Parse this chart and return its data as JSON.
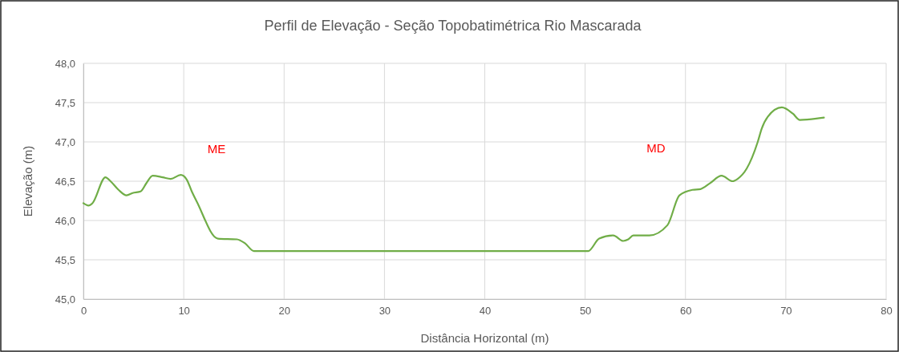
{
  "chart_data": {
    "type": "line",
    "title": "Perfil de Elevação - Seção Topobatimétrica Rio Mascarada",
    "xlabel": "Distância Horizontal (m)",
    "ylabel": "Elevação (m)",
    "xlim": [
      0,
      80
    ],
    "xticks": [
      0,
      10,
      20,
      30,
      40,
      50,
      60,
      70,
      80
    ],
    "ylim": [
      45,
      48
    ],
    "yticks": [
      {
        "value": 45,
        "label": "45,0"
      },
      {
        "value": 45.5,
        "label": "45,5"
      },
      {
        "value": 46,
        "label": "46,0"
      },
      {
        "value": 46.5,
        "label": "46,5"
      },
      {
        "value": 47,
        "label": "47,0"
      },
      {
        "value": 47.5,
        "label": "47,5"
      },
      {
        "value": 48,
        "label": "48,0"
      }
    ],
    "grid": true,
    "marker": "none",
    "line_style": "solid",
    "annotations": [
      "ME",
      "MD"
    ],
    "series": [
      {
        "color": "#70ad47",
        "x": [
          0,
          0.5,
          0.9,
          2.2,
          2.7,
          3.5,
          4.3,
          4.9,
          5.7,
          6.3,
          6.9,
          7.9,
          8.7,
          9.7,
          10.3,
          10.8,
          11.3,
          13.4,
          15.3,
          16.1,
          17.0,
          50.3,
          51.4,
          52.8,
          53.8,
          54.3,
          54.8,
          56.4,
          58.2,
          59.4,
          60.7,
          61.5,
          62.4,
          63.6,
          64.7,
          65.2,
          66.1,
          67.2,
          67.6,
          68.2,
          69.6,
          70.7,
          71.4,
          73.8
        ],
        "values": [
          46.22,
          46.19,
          46.22,
          46.55,
          46.5,
          46.39,
          46.32,
          46.35,
          46.37,
          46.48,
          46.57,
          46.55,
          46.53,
          46.58,
          46.52,
          46.37,
          46.24,
          45.77,
          45.76,
          45.71,
          45.61,
          45.61,
          45.77,
          45.81,
          45.74,
          45.76,
          45.81,
          45.81,
          45.94,
          46.32,
          46.39,
          46.4,
          46.47,
          46.57,
          46.5,
          46.53,
          46.66,
          47.0,
          47.17,
          47.32,
          47.44,
          47.36,
          47.28,
          47.31
        ]
      }
    ]
  }
}
